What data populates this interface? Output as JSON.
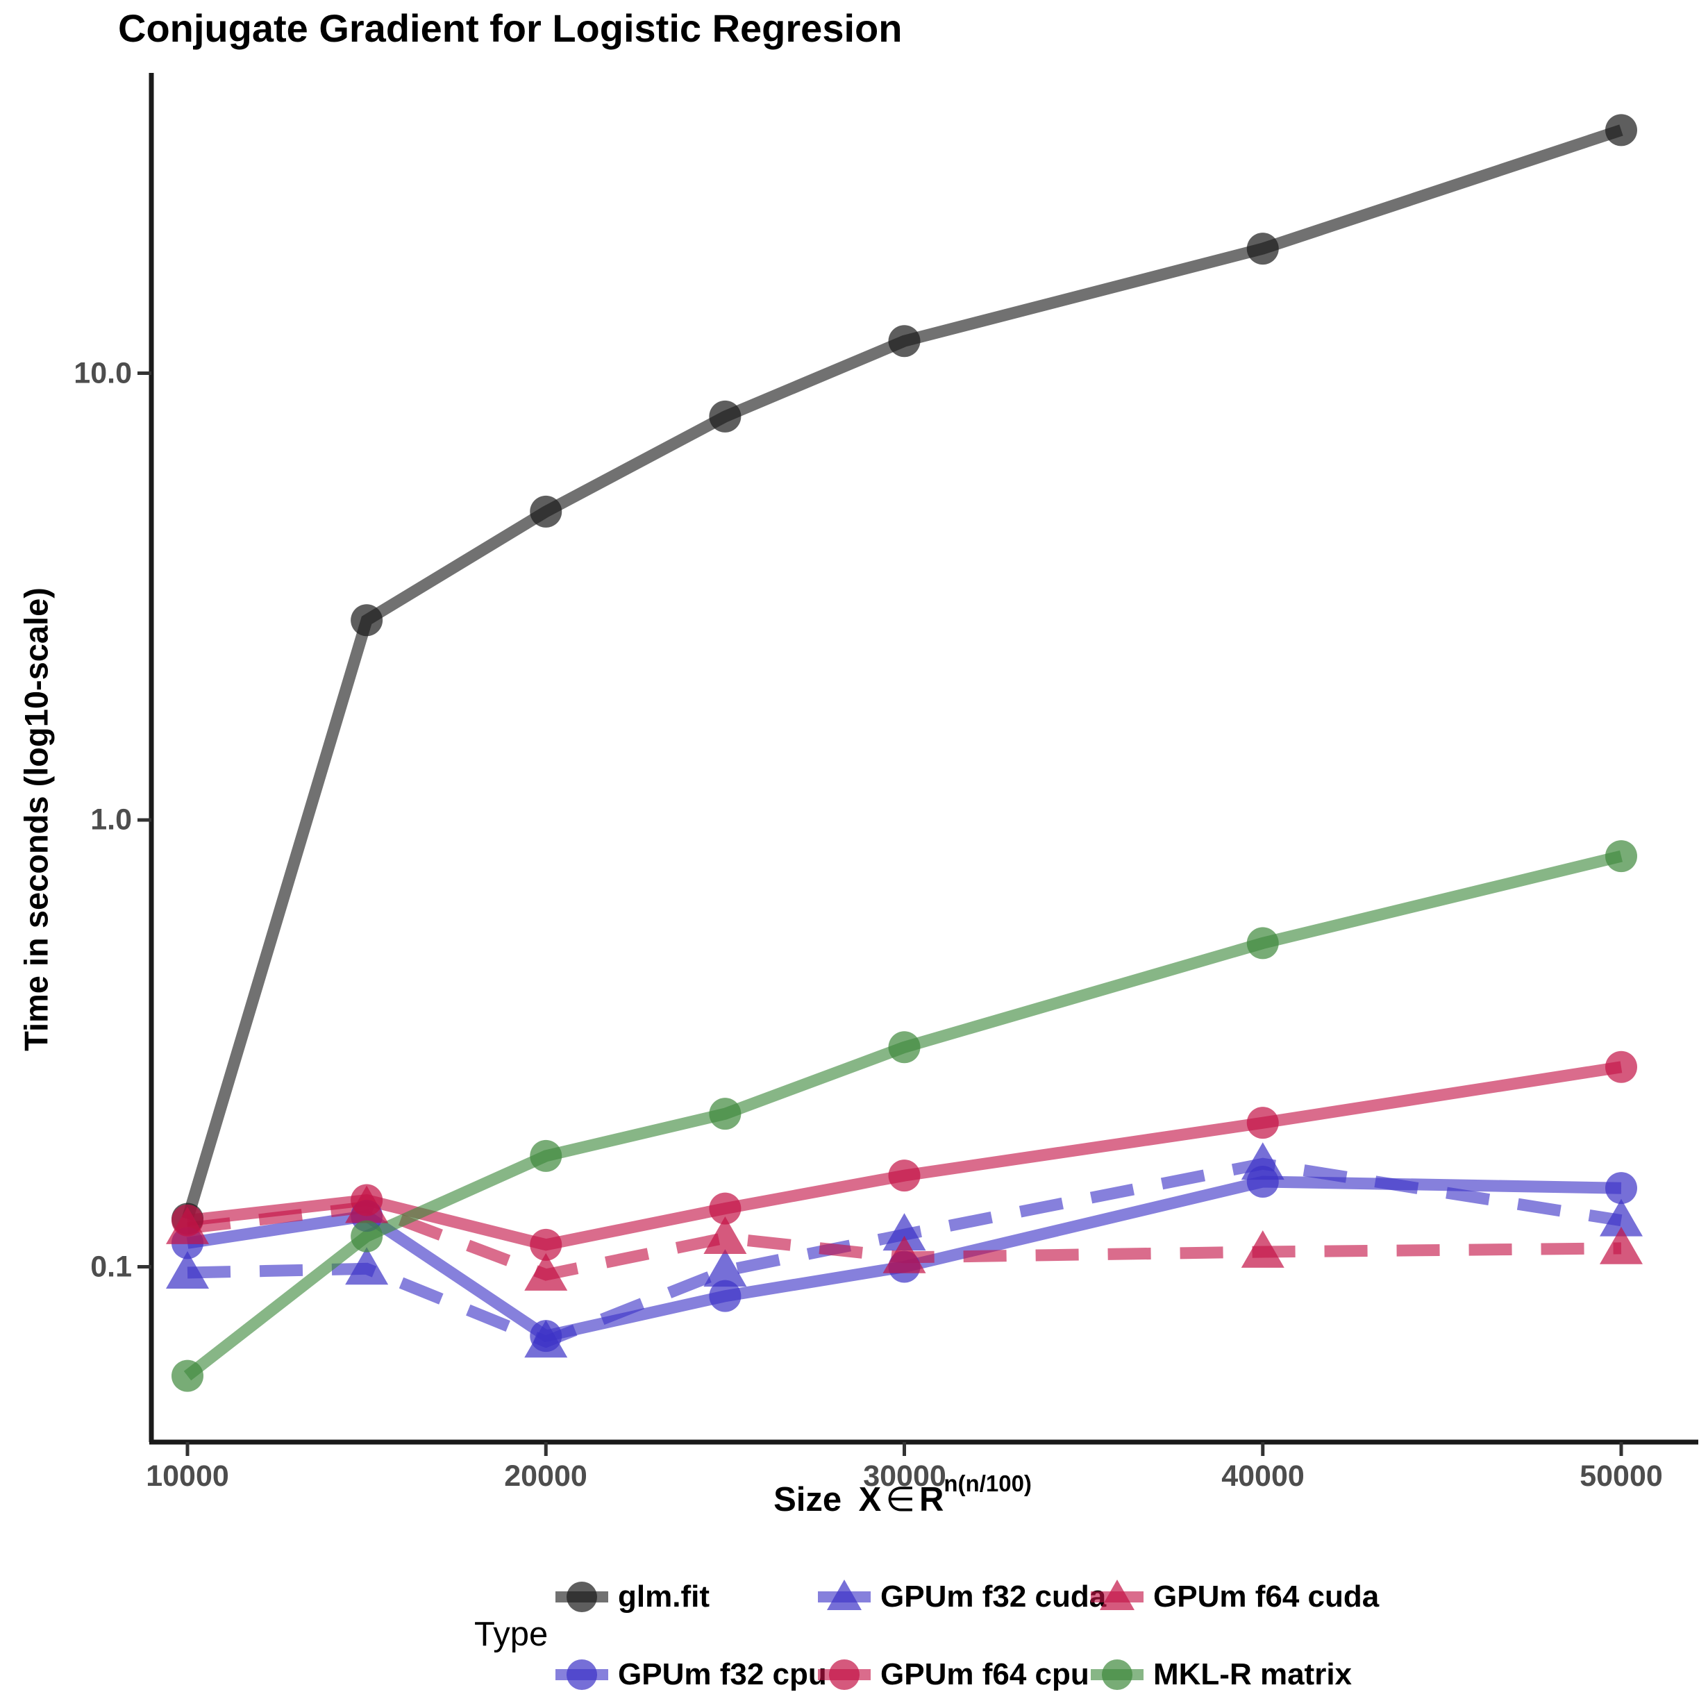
{
  "title": "Conjugate Gradient for Logistic Regresion",
  "axes": {
    "y": {
      "label": "Time in seconds (log10-scale)",
      "scale": "log10",
      "ticks": [
        {
          "label": "10.0"
        },
        {
          "label": "1.0"
        },
        {
          "label": "0.1"
        }
      ]
    },
    "x": {
      "label_prefix": "Size",
      "label_var": "X",
      "label_element_of": "∈",
      "label_set": "R",
      "label_exponent": "n(n/100)",
      "ticks": [
        {
          "label": "10000"
        },
        {
          "label": "20000"
        },
        {
          "label": "30000"
        },
        {
          "label": "40000"
        },
        {
          "label": "50000"
        }
      ]
    }
  },
  "legend": {
    "title": "Type",
    "entries": [
      {
        "label": "glm.fit",
        "series": 0,
        "marker": "circle"
      },
      {
        "label": "GPUm f32 cuda",
        "series": 2,
        "marker": "triangle"
      },
      {
        "label": "GPUm f64 cuda",
        "series": 4,
        "marker": "triangle"
      },
      {
        "label": "GPUm f32 cpu",
        "series": 1,
        "marker": "circle"
      },
      {
        "label": "GPUm f64 cpu",
        "series": 3,
        "marker": "circle"
      },
      {
        "label": "MKL-R matrix",
        "series": 5,
        "marker": "circle"
      }
    ]
  },
  "chart_data": {
    "type": "line",
    "title": "Conjugate Gradient for Logistic Regresion",
    "xlabel": "Size X ∈ R^(n(n/100))",
    "ylabel": "Time in seconds (log10-scale)",
    "y_scale": "log10",
    "ylim": [
      0.04,
      45
    ],
    "grid": false,
    "legend_position": "bottom",
    "x": [
      10000,
      15000,
      20000,
      25000,
      30000,
      40000,
      50000
    ],
    "x_ticks": [
      10000,
      20000,
      30000,
      40000,
      50000
    ],
    "y_ticks": [
      10.0,
      1.0,
      0.1
    ],
    "series": [
      {
        "name": "glm.fit",
        "color": "#1A1A1A",
        "marker": "circle",
        "dashed": false,
        "values": [
          0.128,
          2.8,
          4.9,
          8.0,
          11.8,
          19.0,
          35.0
        ]
      },
      {
        "name": "GPUm f32 cpu",
        "color": "#3C32C6",
        "marker": "circle",
        "dashed": false,
        "values": [
          0.113,
          0.13,
          0.07,
          0.086,
          0.1,
          0.155,
          0.15
        ]
      },
      {
        "name": "GPUm f32 cuda",
        "color": "#3C32C6",
        "marker": "triangle",
        "dashed": true,
        "values": [
          0.097,
          0.099,
          0.068,
          0.098,
          0.118,
          0.17,
          0.127
        ]
      },
      {
        "name": "GPUm f64 cpu",
        "color": "#C31246",
        "marker": "circle",
        "dashed": false,
        "values": [
          0.127,
          0.141,
          0.112,
          0.135,
          0.16,
          0.21,
          0.28
        ]
      },
      {
        "name": "GPUm f64 cuda",
        "color": "#C31246",
        "marker": "triangle",
        "dashed": true,
        "values": [
          0.122,
          0.136,
          0.096,
          0.116,
          0.105,
          0.108,
          0.11
        ]
      },
      {
        "name": "MKL-R matrix",
        "color": "#3E893C",
        "marker": "circle",
        "dashed": false,
        "values": [
          0.057,
          0.117,
          0.177,
          0.22,
          0.31,
          0.53,
          0.83
        ]
      }
    ]
  }
}
